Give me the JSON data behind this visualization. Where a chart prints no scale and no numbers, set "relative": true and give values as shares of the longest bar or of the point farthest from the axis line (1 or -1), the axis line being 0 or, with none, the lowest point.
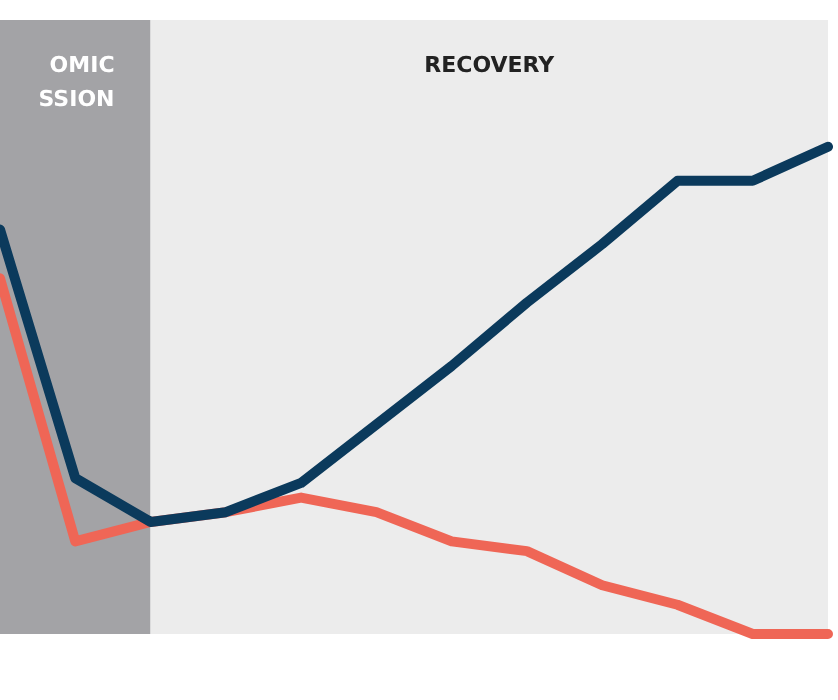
{
  "chart_data": {
    "type": "line",
    "relative": true,
    "categories": [
      null,
      null,
      null,
      null,
      null,
      null,
      null,
      null,
      null,
      null,
      null,
      null
    ],
    "series": [
      {
        "color": "#0b3a5c",
        "values": [
          0.83,
          0.32,
          0.23,
          0.25,
          0.31,
          0.43,
          0.55,
          0.68,
          0.8,
          0.93,
          0.93,
          1
        ]
      },
      {
        "color": "#ef6656",
        "values": [
          0.73,
          0.19,
          0.23,
          0.25,
          0.28,
          0.25,
          0.19,
          0.17,
          0.1,
          0.06,
          0,
          0
        ]
      }
    ],
    "annotations": [
      "OMIC\nSSION",
      "RECOVERY"
    ],
    "grid": false,
    "marker": "none",
    "line_style": "solid"
  }
}
